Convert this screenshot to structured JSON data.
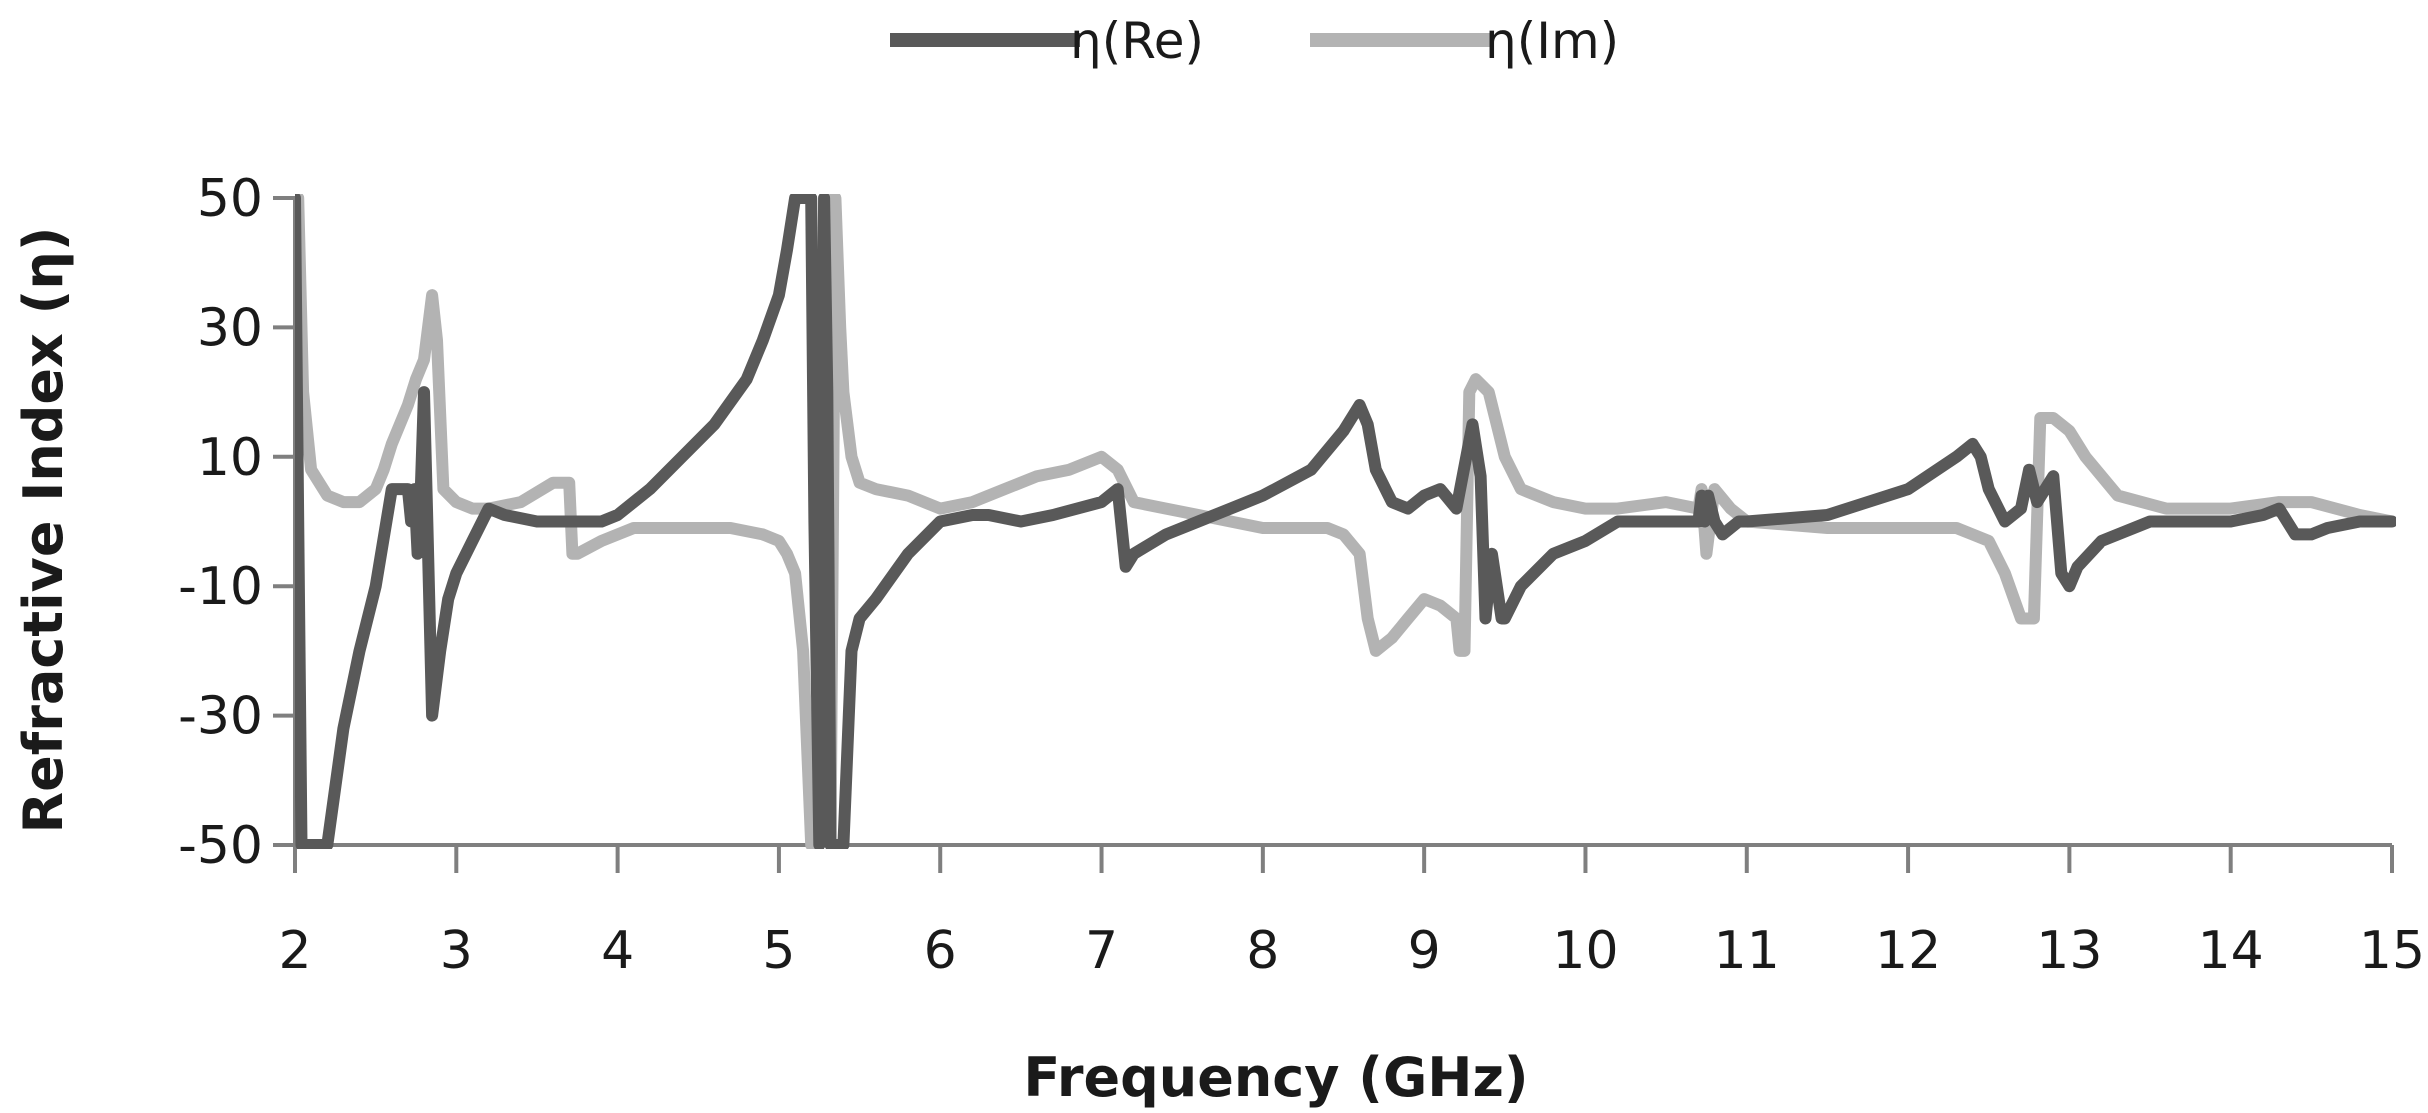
{
  "chart_data": {
    "type": "line",
    "xlabel": "Frequency (GHz)",
    "ylabel": "Refractive Index (η)",
    "xlim": [
      2,
      15
    ],
    "ylim": [
      -50,
      50
    ],
    "xticks": [
      2,
      3,
      4,
      5,
      6,
      7,
      8,
      9,
      10,
      11,
      12,
      13,
      14,
      15
    ],
    "yticks": [
      50,
      30,
      10,
      -10,
      -30,
      -50
    ],
    "grid": false,
    "legend_position": "top-center",
    "series": [
      {
        "name": "η(Re)",
        "color": "#595959",
        "x": [
          2.0,
          2.02,
          2.04,
          2.05,
          2.1,
          2.2,
          2.3,
          2.4,
          2.5,
          2.6,
          2.65,
          2.7,
          2.72,
          2.74,
          2.76,
          2.78,
          2.8,
          2.82,
          2.85,
          2.9,
          2.95,
          3.0,
          3.1,
          3.2,
          3.3,
          3.5,
          3.7,
          3.9,
          4.0,
          4.2,
          4.4,
          4.6,
          4.8,
          4.9,
          5.0,
          5.05,
          5.1,
          5.15,
          5.2,
          5.22,
          5.25,
          5.28,
          5.3,
          5.32,
          5.35,
          5.4,
          5.45,
          5.5,
          5.6,
          5.8,
          6.0,
          6.2,
          6.3,
          6.5,
          6.7,
          7.0,
          7.1,
          7.15,
          7.2,
          7.4,
          7.6,
          7.8,
          8.0,
          8.3,
          8.5,
          8.6,
          8.65,
          8.7,
          8.8,
          8.9,
          9.0,
          9.1,
          9.2,
          9.3,
          9.35,
          9.38,
          9.42,
          9.48,
          9.5,
          9.6,
          9.8,
          10.0,
          10.2,
          10.5,
          10.7,
          10.72,
          10.74,
          10.76,
          10.8,
          10.85,
          10.95,
          11.0,
          11.5,
          12.0,
          12.3,
          12.4,
          12.45,
          12.5,
          12.6,
          12.7,
          12.75,
          12.8,
          12.9,
          12.95,
          13.0,
          13.05,
          13.2,
          13.5,
          13.8,
          14.0,
          14.2,
          14.3,
          14.4,
          14.5,
          14.6,
          14.8,
          15.0
        ],
        "values": [
          50,
          0,
          -50,
          -50,
          -50,
          -50,
          -32,
          -20,
          -10,
          5,
          5,
          5,
          0,
          5,
          -5,
          5,
          20,
          0,
          -30,
          -20,
          -12,
          -8,
          -3,
          2,
          1,
          0,
          0,
          0,
          1,
          5,
          10,
          15,
          22,
          28,
          35,
          42,
          50,
          50,
          50,
          0,
          -50,
          50,
          20,
          -50,
          -50,
          -50,
          -20,
          -15,
          -12,
          -5,
          0,
          1,
          1,
          0,
          1,
          3,
          5,
          -7,
          -5,
          -2,
          0,
          2,
          4,
          8,
          14,
          18,
          15,
          8,
          3,
          2,
          4,
          5,
          2,
          15,
          7,
          -15,
          -5,
          -15,
          -15,
          -10,
          -5,
          -3,
          0,
          0,
          0,
          4,
          0,
          4,
          0,
          -2,
          0,
          0,
          1,
          5,
          10,
          12,
          10,
          5,
          0,
          2,
          8,
          3,
          7,
          -8,
          -10,
          -7,
          -3,
          0,
          0,
          0,
          1,
          2,
          -2,
          -2,
          -1,
          0,
          0
        ]
      },
      {
        "name": "η(Im)",
        "color": "#b3b3b3",
        "x": [
          2.0,
          2.02,
          2.05,
          2.1,
          2.2,
          2.3,
          2.4,
          2.5,
          2.55,
          2.6,
          2.7,
          2.75,
          2.8,
          2.85,
          2.88,
          2.92,
          3.0,
          3.1,
          3.2,
          3.4,
          3.6,
          3.7,
          3.72,
          3.75,
          3.9,
          4.1,
          4.5,
          4.7,
          4.9,
          5.0,
          5.05,
          5.1,
          5.15,
          5.2,
          5.25,
          5.28,
          5.3,
          5.32,
          5.35,
          5.38,
          5.4,
          5.45,
          5.5,
          5.6,
          5.8,
          6.0,
          6.2,
          6.4,
          6.6,
          6.8,
          7.0,
          7.1,
          7.2,
          7.4,
          7.6,
          7.8,
          8.0,
          8.4,
          8.5,
          8.6,
          8.65,
          8.7,
          8.8,
          8.9,
          9.0,
          9.1,
          9.2,
          9.22,
          9.25,
          9.28,
          9.32,
          9.4,
          9.5,
          9.6,
          9.8,
          10.0,
          10.2,
          10.5,
          10.7,
          10.72,
          10.75,
          10.8,
          10.9,
          11.0,
          11.5,
          12.0,
          12.3,
          12.4,
          12.5,
          12.6,
          12.7,
          12.75,
          12.78,
          12.82,
          12.9,
          13.0,
          13.1,
          13.3,
          13.6,
          14.0,
          14.3,
          14.5,
          14.8,
          15.0
        ],
        "values": [
          50,
          50,
          20,
          8,
          4,
          3,
          3,
          5,
          8,
          12,
          18,
          22,
          25,
          35,
          28,
          5,
          3,
          2,
          2,
          3,
          6,
          6,
          -5,
          -5,
          -3,
          -1,
          -1,
          -1,
          -2,
          -3,
          -5,
          -8,
          -20,
          -50,
          -50,
          50,
          50,
          -50,
          50,
          30,
          20,
          10,
          6,
          5,
          4,
          2,
          3,
          5,
          7,
          8,
          10,
          8,
          3,
          2,
          1,
          0,
          -1,
          -1,
          -2,
          -5,
          -15,
          -20,
          -18,
          -15,
          -12,
          -13,
          -15,
          -20,
          -20,
          20,
          22,
          20,
          10,
          5,
          3,
          2,
          2,
          3,
          2,
          5,
          -5,
          5,
          2,
          0,
          -1,
          -1,
          -1,
          -2,
          -3,
          -8,
          -15,
          -15,
          -15,
          16,
          16,
          14,
          10,
          4,
          2,
          2,
          3,
          3,
          1,
          0
        ]
      }
    ]
  }
}
